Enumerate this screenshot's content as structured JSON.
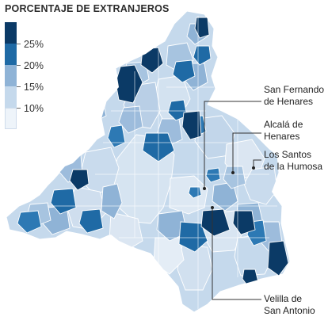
{
  "title": "PORCENTAJE DE EXTRANJEROS",
  "legend": {
    "bins": [
      {
        "label": "25%",
        "color": "#0b3a66"
      },
      {
        "label": "20%",
        "color": "#1f6aa5"
      },
      {
        "label": "15%",
        "color": "#8fb3d6"
      },
      {
        "label": "10%",
        "color": "#c5d9ec"
      },
      {
        "label": "",
        "color": "#eef4fa"
      }
    ]
  },
  "labels": {
    "san_fernando": "San Fernando\nde Henares",
    "alcala": "Alcalá de\nHenares",
    "los_santos": "Los Santos\nde la Humosa",
    "velilla": "Velilla de\nSan Antonio"
  },
  "colors": {
    "border": "#ffffff",
    "darkest": "#0b3a66",
    "dark": "#1f6aa5",
    "mid": "#8fb3d6",
    "light": "#c5d9ec",
    "lightest": "#eef4fa",
    "leader": "#333333"
  }
}
